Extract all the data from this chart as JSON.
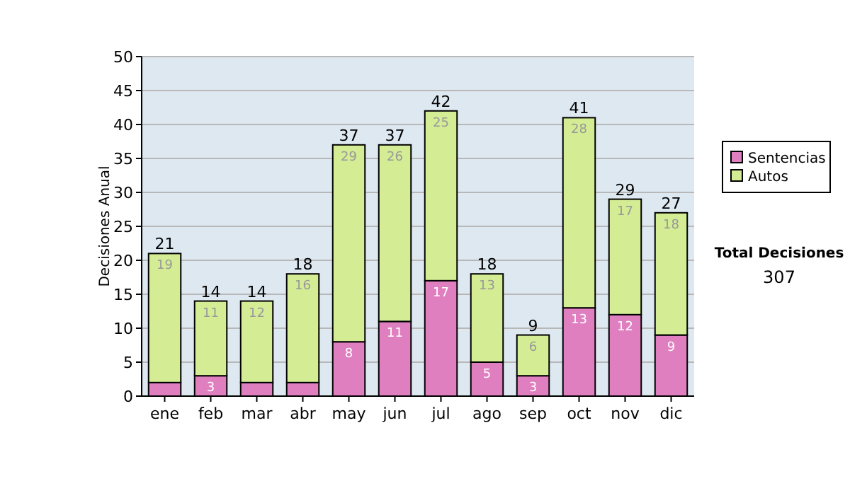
{
  "chart_data": {
    "type": "bar",
    "stacked": true,
    "ylabel": "Decisiones Anual",
    "categories": [
      "ene",
      "feb",
      "mar",
      "abr",
      "may",
      "jun",
      "jul",
      "ago",
      "sep",
      "oct",
      "nov",
      "dic"
    ],
    "series": [
      {
        "name": "Sentencias",
        "color": "#e07fc0",
        "values": [
          2,
          3,
          2,
          2,
          8,
          11,
          17,
          5,
          3,
          13,
          12,
          9
        ],
        "value_labels": [
          null,
          "3",
          null,
          null,
          "8",
          "11",
          "17",
          "5",
          "3",
          "13",
          "12",
          "9"
        ]
      },
      {
        "name": "Autos",
        "color": "#d4ec94",
        "values": [
          19,
          11,
          12,
          16,
          29,
          26,
          25,
          13,
          6,
          28,
          17,
          18
        ],
        "value_labels": [
          "19",
          "11",
          "12",
          "16",
          "29",
          "26",
          "25",
          "13",
          "6",
          "28",
          "17",
          "18"
        ]
      }
    ],
    "totals": [
      "21",
      "14",
      "14",
      "18",
      "37",
      "37",
      "42",
      "18",
      "9",
      "41",
      "29",
      "27"
    ],
    "ylim": [
      0,
      50
    ],
    "yticks": [
      0,
      5,
      10,
      15,
      20,
      25,
      30,
      35,
      40,
      45,
      50
    ],
    "grid": "y",
    "legend": "right",
    "annotations": [
      "Total Decisiones",
      "307"
    ]
  }
}
